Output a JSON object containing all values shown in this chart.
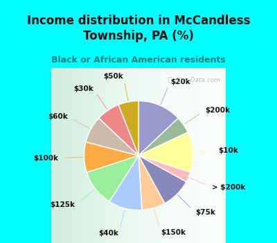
{
  "title": "Income distribution in McCandless\nTownship, PA (%)",
  "subtitle": "Black or African American residents",
  "title_color": "#111111",
  "subtitle_color": "#008080",
  "bg_cyan": "#00ffff",
  "bg_chart_color": "#d5ede0",
  "labels": [
    "$20k",
    "$200k",
    "$10k",
    "> $200k",
    "$75k",
    "$150k",
    "$40k",
    "$125k",
    "$100k",
    "$60k",
    "$30k",
    "$50k"
  ],
  "values": [
    13,
    5,
    12,
    3,
    9,
    7,
    10,
    11,
    9,
    8,
    7,
    6
  ],
  "colors": [
    "#9999cc",
    "#99bb99",
    "#ffff99",
    "#ffbbbb",
    "#8888bb",
    "#ffcc99",
    "#aaccff",
    "#99ee99",
    "#ffaa44",
    "#ccbbaa",
    "#ee8888",
    "#ccaa22"
  ],
  "label_fontsize": 7.5,
  "watermark": "  City-Data.com"
}
